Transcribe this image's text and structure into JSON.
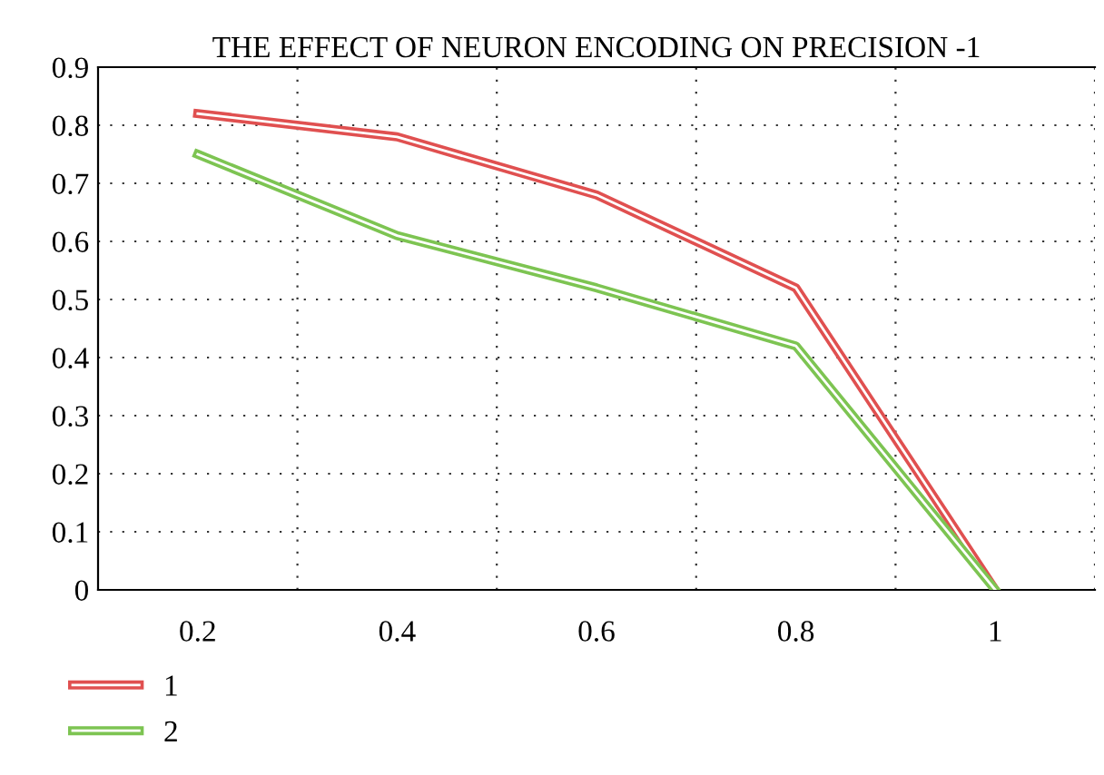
{
  "chart_data": {
    "type": "line",
    "title": "THE EFFECT OF NEURON ENCODING ON PRECISION -1",
    "x": [
      0.2,
      0.4,
      0.6,
      0.8,
      1
    ],
    "series": [
      {
        "name": "1",
        "color": "#e05050",
        "values": [
          0.82,
          0.78,
          0.68,
          0.52,
          0
        ]
      },
      {
        "name": "2",
        "color": "#7dc452",
        "values": [
          0.75,
          0.61,
          0.52,
          0.42,
          0
        ]
      }
    ],
    "xlim": [
      0.1,
      1.1
    ],
    "xticks": [
      0.2,
      0.4,
      0.6,
      0.8,
      1
    ],
    "ylim": [
      0,
      0.9
    ],
    "yticks": [
      0,
      0.1,
      0.2,
      0.3,
      0.4,
      0.5,
      0.6,
      0.7,
      0.8,
      0.9
    ],
    "grid": true,
    "legend": "bottom left",
    "marker": "none",
    "line_style": "solid"
  }
}
